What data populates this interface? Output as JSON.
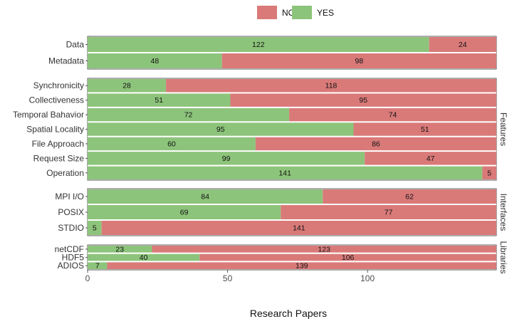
{
  "chart_data": {
    "type": "bar",
    "orientation": "horizontal",
    "stacked": true,
    "legend": {
      "placement": "top",
      "entries": [
        {
          "label": "NO",
          "color": "#D97A79"
        },
        {
          "label": "YES",
          "color": "#8DC47B"
        }
      ]
    },
    "xlabel": "Research Papers",
    "xlim": [
      0,
      146
    ],
    "xticks": [
      0,
      50,
      100
    ],
    "grid": false,
    "panels": [
      {
        "label": "",
        "categories": [
          "Data",
          "Metadata"
        ],
        "yes": [
          122,
          48
        ],
        "no": [
          24,
          98
        ]
      },
      {
        "label": "Features",
        "categories": [
          "Synchronicity",
          "Collectiveness",
          "Temporal Bahavior",
          "Spatial Locality",
          "File Approach",
          "Request Size",
          "Operation"
        ],
        "yes": [
          28,
          51,
          72,
          95,
          60,
          99,
          141
        ],
        "no": [
          118,
          95,
          74,
          51,
          86,
          47,
          5
        ]
      },
      {
        "label": "Interfaces",
        "categories": [
          "MPI I/O",
          "POSIX",
          "STDIO"
        ],
        "yes": [
          84,
          69,
          5
        ],
        "no": [
          62,
          77,
          141
        ]
      },
      {
        "label": "Libraries",
        "categories": [
          "netCDF",
          "HDF5",
          "ADIOS"
        ],
        "yes": [
          23,
          40,
          7
        ],
        "no": [
          123,
          106,
          139
        ]
      }
    ]
  }
}
